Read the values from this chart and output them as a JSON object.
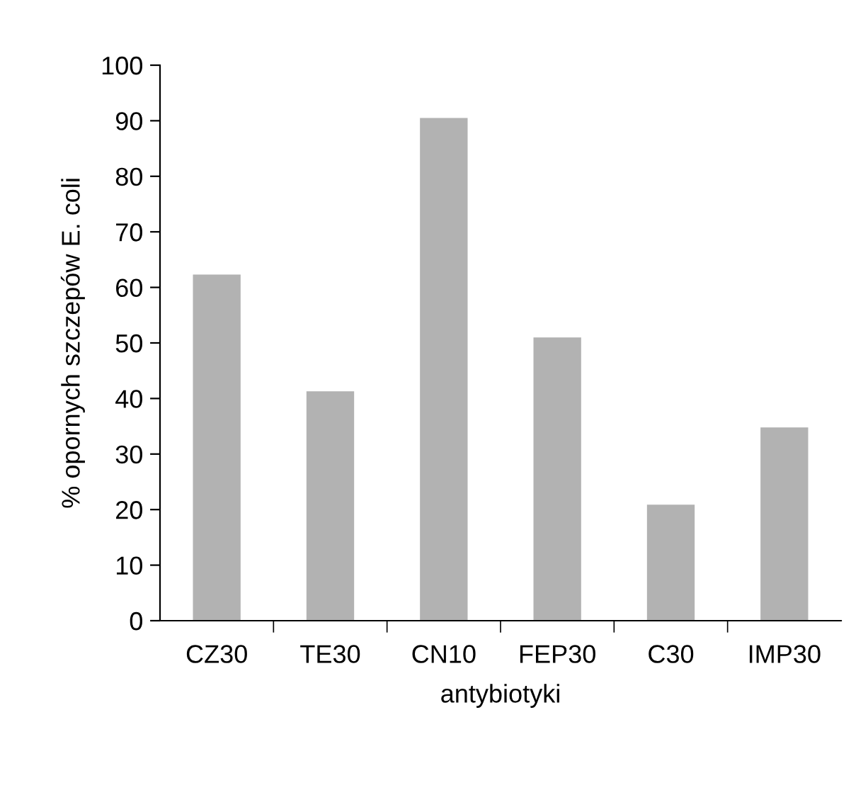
{
  "chart_data": {
    "type": "bar",
    "xlabel": "antybiotyki",
    "ylabel": "% opornych szczepów E. coli",
    "categories": [
      "CZ30",
      "TE30",
      "CN10",
      "FEP30",
      "C30",
      "IMP30"
    ],
    "values": [
      62.3,
      41.3,
      90.5,
      51.0,
      20.9,
      34.8
    ],
    "color": "#b2b2b2",
    "ylim": [
      0,
      100
    ],
    "yticks": [
      0,
      10,
      20,
      30,
      40,
      50,
      60,
      70,
      80,
      90,
      100
    ],
    "grid": false,
    "legend": false
  }
}
